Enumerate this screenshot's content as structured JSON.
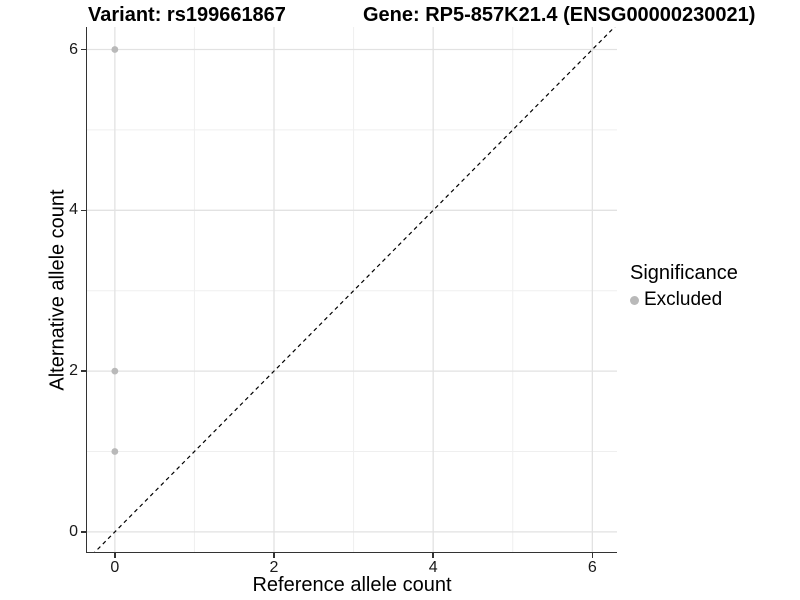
{
  "titles": {
    "variant": "Variant: rs199661867",
    "gene": "Gene: RP5-857K21.4 (ENSG00000230021)"
  },
  "chart_data": {
    "type": "scatter",
    "title_left": "Variant: rs199661867",
    "title_right": "Gene: RP5-857K21.4 (ENSG00000230021)",
    "xlabel": "Reference allele count",
    "ylabel": "Alternative allele count",
    "xlim": [
      -0.35,
      6.31
    ],
    "ylim": [
      -0.25,
      6.28
    ],
    "x_ticks": [
      0,
      2,
      4,
      6
    ],
    "y_ticks": [
      0,
      2,
      4,
      6
    ],
    "x_minor_ticks": [
      1,
      3,
      5
    ],
    "y_minor_ticks": [
      1,
      3,
      5
    ],
    "grid": true,
    "identity_line": {
      "style": "dashed",
      "from": -0.35,
      "to": 6.31,
      "color": "#000000"
    },
    "series": [
      {
        "name": "Excluded",
        "color": "#b9b9b9",
        "points": [
          {
            "x": 0,
            "y": 6
          },
          {
            "x": 0,
            "y": 2
          },
          {
            "x": 0,
            "y": 1
          }
        ]
      }
    ],
    "legend": {
      "title": "Significance",
      "position": "right",
      "items": [
        {
          "label": "Excluded",
          "color": "#b9b9b9"
        }
      ]
    }
  },
  "colors": {
    "background": "#ffffff",
    "axis": "#333333",
    "grid_major": "#e2e2e2",
    "grid_minor": "#efefef",
    "point_excluded": "#b9b9b9",
    "identity_line": "#000000"
  }
}
